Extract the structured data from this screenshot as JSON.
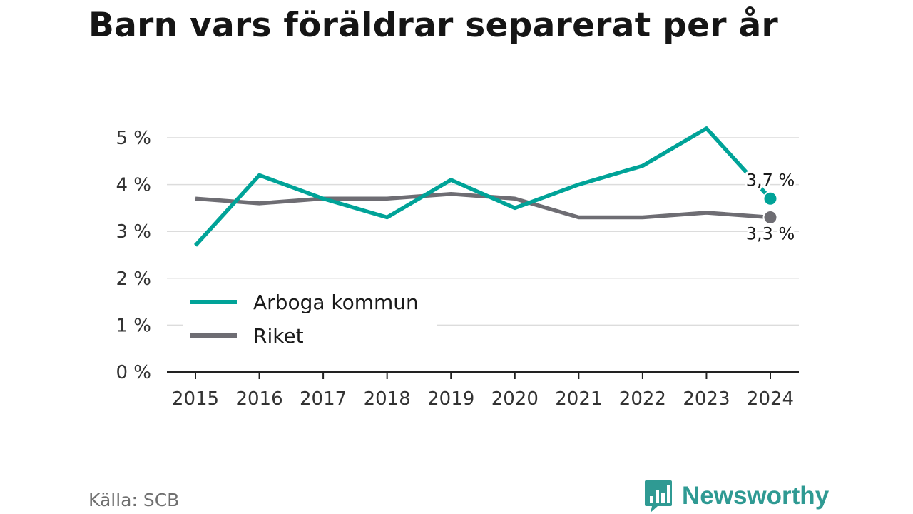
{
  "chart_data": {
    "type": "line",
    "title": "Barn vars föräldrar separerat per år",
    "xlabel": "",
    "ylabel": "",
    "x": [
      2015,
      2016,
      2017,
      2018,
      2019,
      2020,
      2021,
      2022,
      2023,
      2024
    ],
    "x_tick_labels": [
      "2015",
      "2016",
      "2017",
      "2018",
      "2019",
      "2020",
      "2021",
      "2022",
      "2023",
      "2024"
    ],
    "ylim": [
      0,
      5
    ],
    "y_ticks": [
      0,
      1,
      2,
      3,
      4,
      5
    ],
    "y_tick_labels": [
      "0 %",
      "1 %",
      "2 %",
      "3 %",
      "4 %",
      "5 %"
    ],
    "grid": true,
    "legend_position": "bottom-left",
    "series": [
      {
        "name": "Arboga kommun",
        "color": "#00a398",
        "values": [
          2.7,
          4.2,
          3.7,
          3.3,
          4.1,
          3.5,
          4.0,
          4.4,
          5.2,
          3.7
        ],
        "end_label": "3,7 %"
      },
      {
        "name": "Riket",
        "color": "#6e6d73",
        "values": [
          3.7,
          3.6,
          3.7,
          3.7,
          3.8,
          3.7,
          3.3,
          3.3,
          3.4,
          3.3
        ],
        "end_label": "3,3 %"
      }
    ]
  },
  "footer": {
    "source": "Källa: SCB",
    "brand": "Newsworthy",
    "brand_color": "#2f9a93",
    "brand_icon": "bar-chart-speech-bubble-icon"
  }
}
